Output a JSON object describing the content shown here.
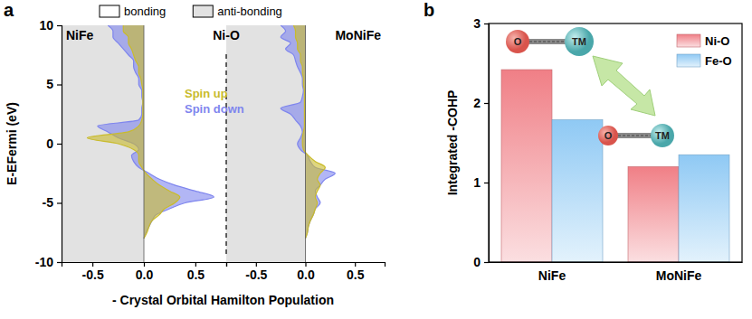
{
  "chart_data": [
    {
      "type": "line",
      "panel": "a",
      "orientation": "horizontal",
      "annotation": "Ni-O",
      "xlabel": "E-EFermi (eV)",
      "ylabel": "- Crystal Orbital Hamilton Population",
      "x": [
        -8,
        -7.5,
        -7,
        -6.5,
        -6,
        -5.5,
        -5,
        -4.5,
        -4,
        -3.5,
        -3,
        -2.5,
        -2,
        -1.5,
        -1,
        -0.5,
        0,
        0.5,
        1,
        1.5,
        2,
        2.5,
        3,
        3.5,
        4,
        4.5,
        5,
        5.5,
        6,
        6.5,
        7,
        7.5,
        8,
        8.5,
        9,
        9.5,
        10
      ],
      "xlim": [
        -10,
        10
      ],
      "xticks": [
        -10,
        -5,
        0,
        5,
        10
      ],
      "ylim": [
        -0.8,
        0.8
      ],
      "yticks": [
        -0.5,
        {
          "value": 0,
          "label": "0.0"
        },
        0.5
      ],
      "regions": [
        {
          "name": "bonding",
          "side": "positive",
          "color": "#ffffff"
        },
        {
          "name": "anti-bonding",
          "side": "negative",
          "color": "#e2e2e2"
        }
      ],
      "legend": "center",
      "panels": [
        {
          "title": "NiFe",
          "series": [
            {
              "name": "Spin up",
              "color": "#c9bb2c",
              "values": [
                0,
                0.03,
                0.05,
                0.08,
                0.15,
                0.2,
                0.3,
                0.35,
                0.25,
                0.15,
                0.08,
                0.02,
                -0.02,
                -0.05,
                -0.05,
                -0.1,
                -0.25,
                -0.55,
                -0.15,
                -0.05,
                -0.02,
                -0.01,
                -0.01,
                -0.01,
                -0.01,
                -0.01,
                -0.02,
                -0.03,
                -0.05,
                -0.05,
                -0.08,
                -0.1,
                -0.12,
                -0.15,
                -0.15,
                -0.2,
                -0.2
              ]
            },
            {
              "name": "Spin down",
              "color": "#7f86ee",
              "values": [
                0,
                0.02,
                0.05,
                0.08,
                0.12,
                0.25,
                0.4,
                0.68,
                0.5,
                0.3,
                0.15,
                0.05,
                -0.05,
                -0.1,
                -0.12,
                -0.05,
                -0.1,
                -0.25,
                -0.35,
                -0.45,
                -0.05,
                -0.02,
                -0.02,
                -0.01,
                -0.02,
                -0.02,
                -0.05,
                -0.05,
                -0.08,
                -0.1,
                -0.1,
                -0.15,
                -0.2,
                -0.25,
                -0.3,
                -0.3,
                -0.35
              ]
            }
          ]
        },
        {
          "title": "MoNiFe",
          "series": [
            {
              "color": "#c9bb2c",
              "values": [
                0,
                0.02,
                0.03,
                0.05,
                0.08,
                0.1,
                0.12,
                0.1,
                0.12,
                0.15,
                0.12,
                0.15,
                0.2,
                0.1,
                0.03,
                -0.02,
                -0.03,
                -0.03,
                -0.02,
                -0.01,
                -0.01,
                -0.01,
                -0.01,
                -0.01,
                -0.01,
                -0.01,
                -0.02,
                -0.02,
                -0.03,
                -0.03,
                -0.05,
                -0.05,
                -0.08,
                -0.08,
                -0.1,
                -0.1,
                -0.12
              ]
            },
            {
              "color": "#7f86ee",
              "values": [
                0,
                0.02,
                0.03,
                0.05,
                0.08,
                0.1,
                0.15,
                0.12,
                0.1,
                0.15,
                0.2,
                0.3,
                0.1,
                0.05,
                0.02,
                -0.05,
                -0.08,
                -0.05,
                -0.03,
                -0.05,
                -0.1,
                -0.15,
                -0.25,
                -0.05,
                -0.03,
                -0.02,
                -0.03,
                -0.03,
                -0.05,
                -0.08,
                -0.1,
                -0.12,
                -0.2,
                -0.15,
                -0.25,
                -0.2,
                -0.25
              ]
            }
          ]
        }
      ]
    },
    {
      "type": "bar",
      "panel": "b",
      "ylabel": "Integrated -COHP",
      "categories": [
        "NiFe",
        "MoNiFe"
      ],
      "series": [
        {
          "name": "Ni-O",
          "color": "#f07f86",
          "values": [
            2.42,
            1.2
          ]
        },
        {
          "name": "Fe-O",
          "color": "#8fc9f4",
          "values": [
            1.79,
            1.35
          ]
        }
      ],
      "ylim": [
        0,
        3
      ],
      "yticks": [
        0,
        1,
        2,
        3
      ],
      "legend": "upper right",
      "annotations": [
        [
          "O",
          "TM"
        ],
        [
          "O",
          "TM"
        ]
      ]
    }
  ]
}
